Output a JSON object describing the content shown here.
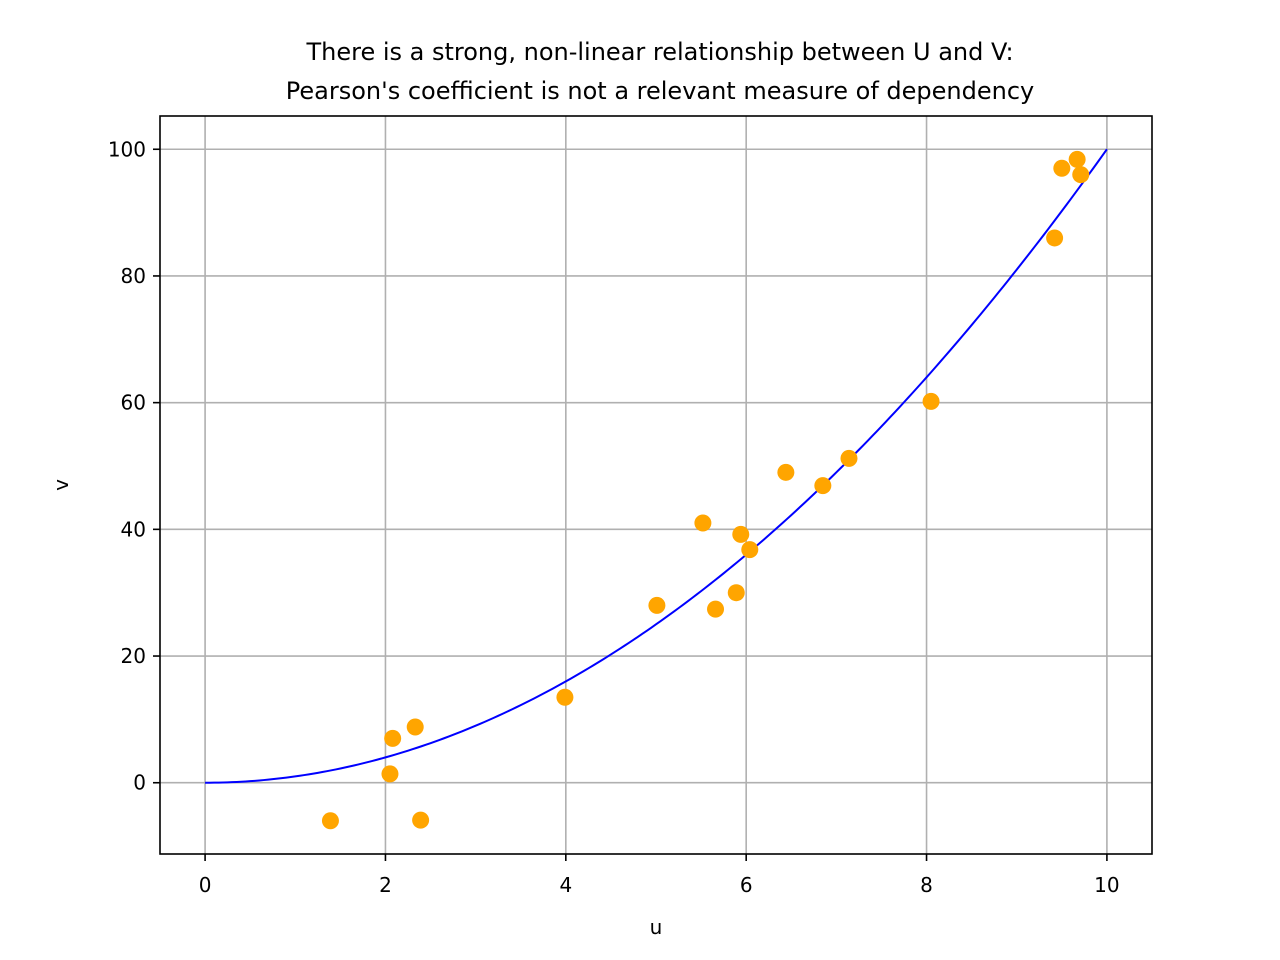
{
  "chart_data": {
    "type": "scatter",
    "title_lines": [
      "There is a strong, non-linear relationship between U and V:",
      "Pearson's coefficient is not a relevant measure of dependency"
    ],
    "xlabel": "u",
    "ylabel": "v",
    "xlim": [
      -0.5,
      10.5
    ],
    "ylim": [
      -11.25,
      105.25
    ],
    "x_ticks": [
      0,
      2,
      4,
      6,
      8,
      10
    ],
    "y_ticks": [
      0,
      20,
      40,
      60,
      80,
      100
    ],
    "grid": true,
    "legend": "none",
    "colors": {
      "points": "#ffa500",
      "curve": "#0000ff",
      "grid": "#b0b0b0",
      "axes": "#000000"
    },
    "series": [
      {
        "kind": "scatter",
        "points": [
          {
            "x": 1.39,
            "y": -6.0
          },
          {
            "x": 2.05,
            "y": 1.4
          },
          {
            "x": 2.08,
            "y": 7.0
          },
          {
            "x": 2.33,
            "y": 8.8
          },
          {
            "x": 2.39,
            "y": -5.9
          },
          {
            "x": 3.99,
            "y": 13.5
          },
          {
            "x": 5.01,
            "y": 28.0
          },
          {
            "x": 5.52,
            "y": 41.0
          },
          {
            "x": 5.66,
            "y": 27.4
          },
          {
            "x": 5.89,
            "y": 30.0
          },
          {
            "x": 5.94,
            "y": 39.2
          },
          {
            "x": 6.04,
            "y": 36.8
          },
          {
            "x": 6.44,
            "y": 49.0
          },
          {
            "x": 6.85,
            "y": 46.9
          },
          {
            "x": 7.14,
            "y": 51.2
          },
          {
            "x": 8.05,
            "y": 60.2
          },
          {
            "x": 9.42,
            "y": 86.0
          },
          {
            "x": 9.5,
            "y": 97.0
          },
          {
            "x": 9.67,
            "y": 98.4
          },
          {
            "x": 9.71,
            "y": 96.0
          }
        ]
      },
      {
        "kind": "line",
        "function": "v = u^2",
        "x_range": [
          0,
          10
        ]
      }
    ]
  }
}
